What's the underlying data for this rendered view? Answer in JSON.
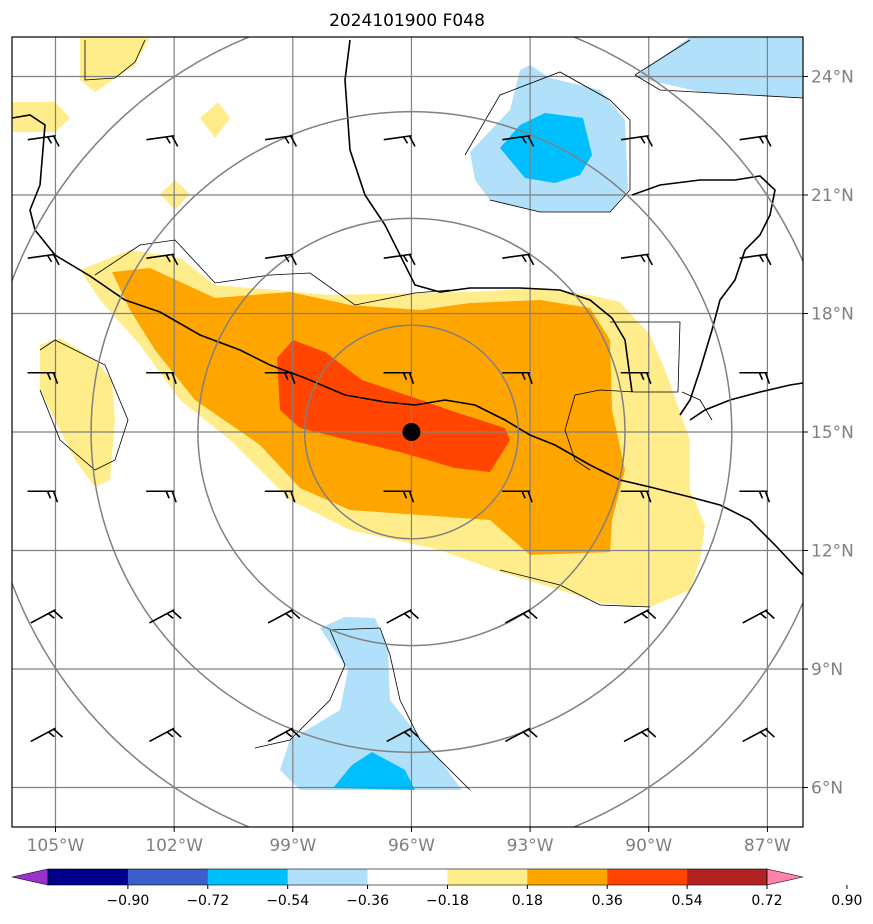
{
  "chart_data": {
    "type": "heatmap",
    "title": "2024101900 F048",
    "map": {
      "lon_range": [
        -106.1,
        -86.1
      ],
      "lat_range": [
        5.0,
        25.0
      ],
      "projection": "plate-carree",
      "grid": true,
      "lon_ticks": [
        {
          "value": -105,
          "label": "105°W"
        },
        {
          "value": -102,
          "label": "102°W"
        },
        {
          "value": -99,
          "label": "99°W"
        },
        {
          "value": -96,
          "label": "96°W"
        },
        {
          "value": -93,
          "label": "93°W"
        },
        {
          "value": -90,
          "label": "90°W"
        },
        {
          "value": -87,
          "label": "87°W"
        }
      ],
      "lat_ticks": [
        {
          "value": 6,
          "label": "6°N"
        },
        {
          "value": 9,
          "label": "9°N"
        },
        {
          "value": 12,
          "label": "12°N"
        },
        {
          "value": 15,
          "label": "15°N"
        },
        {
          "value": 18,
          "label": "18°N"
        },
        {
          "value": 21,
          "label": "21°N"
        },
        {
          "value": 24,
          "label": "24°N"
        }
      ],
      "center": {
        "lon": -96.0,
        "lat": 15.0
      },
      "range_rings_deg": [
        2.7,
        5.4,
        8.1,
        10.8
      ]
    },
    "colorbar": {
      "ticks": [
        "−0.90",
        "−0.72",
        "−0.54",
        "−0.36",
        "−0.18",
        "0.18",
        "0.36",
        "0.54",
        "0.72",
        "0.90"
      ],
      "levels": [
        -0.9,
        -0.72,
        -0.54,
        -0.36,
        -0.18,
        0.18,
        0.36,
        0.54,
        0.72,
        0.9
      ],
      "colors": [
        "#9932cc",
        "#00008b",
        "#3a5fcd",
        "#00bfff",
        "#b0e0fa",
        "#ffffff",
        "#ffec8b",
        "#ffa500",
        "#ff4500",
        "#b22222",
        "#ff82ab"
      ],
      "extend": "both",
      "orientation": "horizontal"
    },
    "wind_barbs": {
      "lons": [
        -105,
        -102,
        -99,
        -96,
        -93,
        -90,
        -87
      ],
      "lats": [
        7.5,
        10.5,
        13.5,
        16.5,
        19.5,
        22.5
      ]
    }
  }
}
